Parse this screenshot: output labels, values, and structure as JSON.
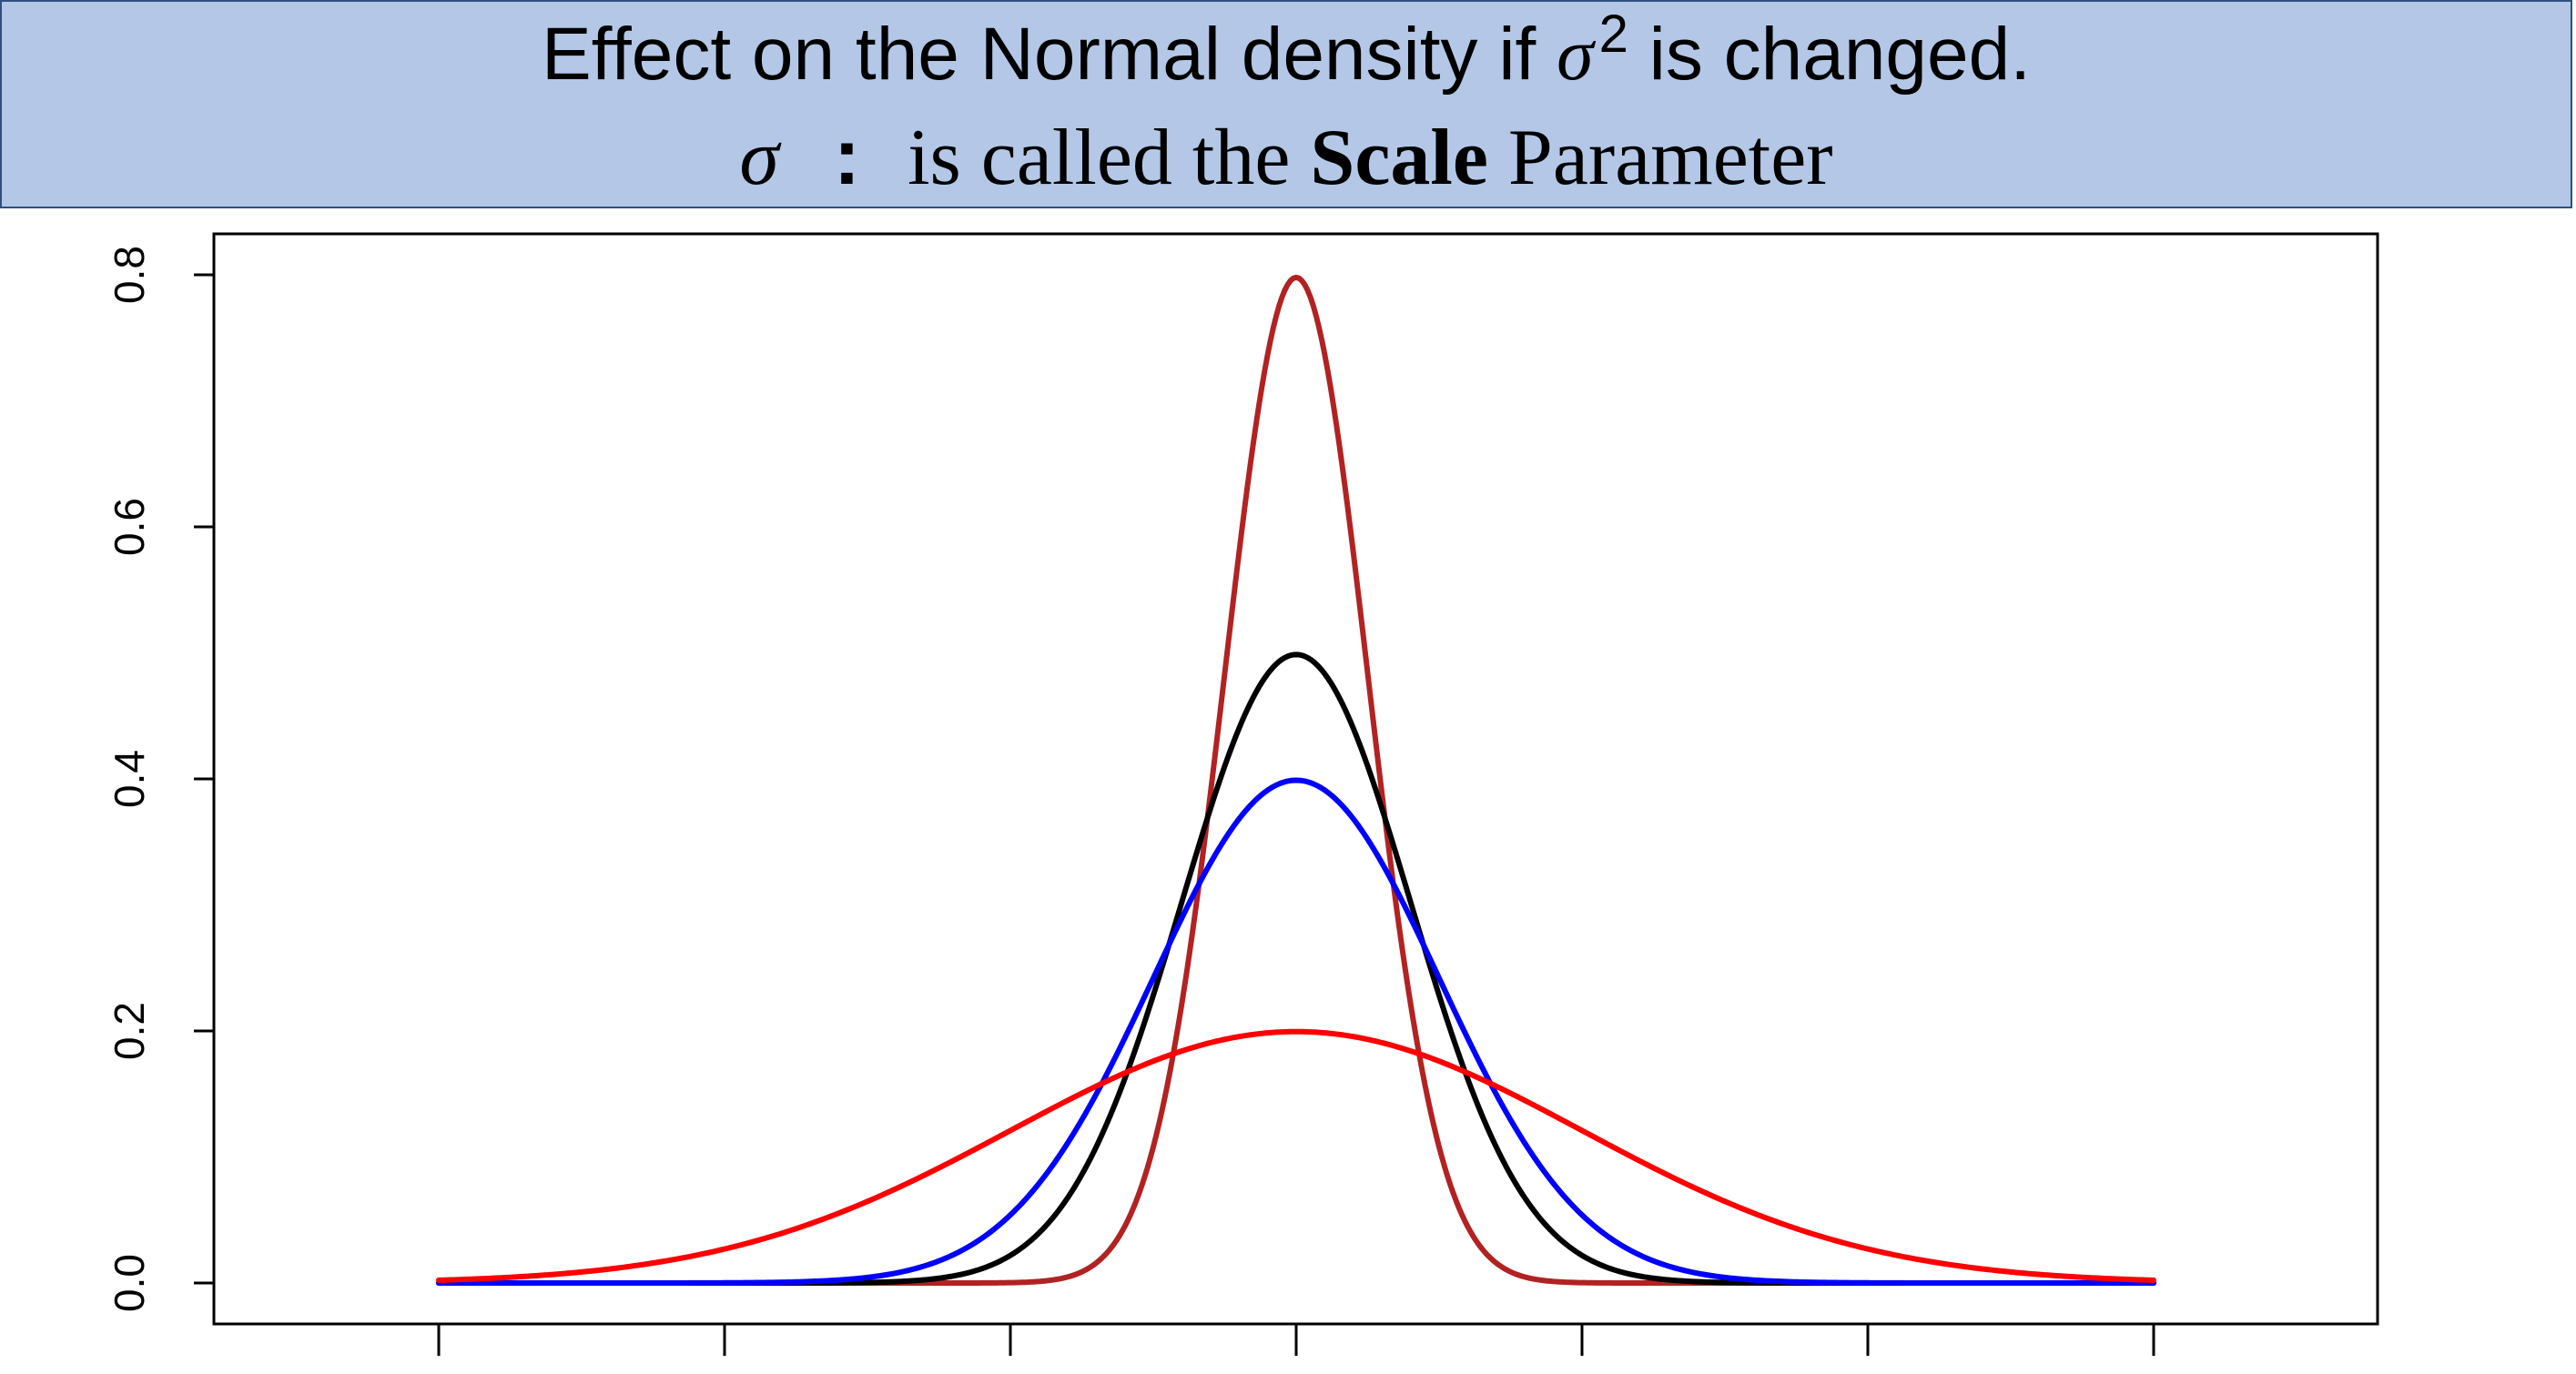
{
  "header": {
    "line1_before": "Effect on the Normal density if ",
    "line1_symbol": "σ",
    "line1_superscript": "2",
    "line1_after": " is changed.",
    "line2_symbol": "σ",
    "line2_colon": ":",
    "line2_before": " is called the ",
    "line2_bold": "Scale",
    "line2_after": " Parameter",
    "background_color": "#b4c7e7"
  },
  "chart_data": {
    "type": "line",
    "title": "",
    "xlabel": "",
    "ylabel": "",
    "ylim": [
      0,
      0.8
    ],
    "yticks": [
      0.0,
      0.2,
      0.4,
      0.6,
      0.8
    ],
    "ytick_labels": [
      "0.0",
      "0.2",
      "0.4",
      "0.6",
      "0.8"
    ],
    "xlim": [
      -6.8,
      6.8
    ],
    "xtick_count": 7,
    "x_range": [
      -6.0,
      6.0
    ],
    "grid": false,
    "legend": "none",
    "series": [
      {
        "color": "#b22222",
        "distribution": "normal",
        "mean": 0,
        "sd": 0.5,
        "peak": 0.8
      },
      {
        "color": "#000000",
        "distribution": "normal",
        "mean": 0,
        "sd": 0.8,
        "peak": 0.5
      },
      {
        "color": "#0000ff",
        "distribution": "normal",
        "mean": 0,
        "sd": 1.0,
        "peak": 0.4
      },
      {
        "color": "#ff0000",
        "distribution": "normal",
        "mean": 0,
        "sd": 2.0,
        "peak": 0.2
      }
    ]
  }
}
